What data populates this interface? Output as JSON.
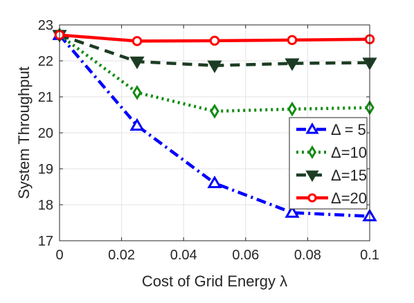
{
  "chart_data": {
    "type": "line",
    "xlabel": "Cost of Grid Energy λ",
    "ylabel": "System Throughput",
    "xlim": [
      0,
      0.1
    ],
    "ylim": [
      17,
      23
    ],
    "x_ticks": [
      0,
      0.02,
      0.04,
      0.06,
      0.08,
      0.1
    ],
    "x_tick_labels": [
      "0",
      "0.02",
      "0.04",
      "0.06",
      "0.08",
      "0.1"
    ],
    "y_ticks": [
      17,
      18,
      19,
      20,
      21,
      22,
      23
    ],
    "y_tick_labels": [
      "17",
      "18",
      "19",
      "20",
      "21",
      "22",
      "23"
    ],
    "grid": true,
    "legend_position": "right",
    "x": [
      0,
      0.025,
      0.05,
      0.075,
      0.1
    ],
    "series": [
      {
        "name": "Δ = 5",
        "values": [
          22.72,
          20.2,
          18.6,
          17.78,
          17.68
        ],
        "color": "#0000ff",
        "line_style": "dash-dot",
        "marker": "triangle-up"
      },
      {
        "name": "Δ=10",
        "values": [
          22.72,
          21.12,
          20.6,
          20.66,
          20.7
        ],
        "color": "#138c13",
        "line_style": "dotted",
        "marker": "diamond"
      },
      {
        "name": "Δ=15",
        "values": [
          22.72,
          21.98,
          21.87,
          21.93,
          21.95
        ],
        "color": "#1c3d24",
        "line_style": "dashed",
        "marker": "triangle-down"
      },
      {
        "name": "Δ=20",
        "values": [
          22.72,
          22.55,
          22.56,
          22.58,
          22.6
        ],
        "color": "#ff0000",
        "line_style": "solid",
        "marker": "circle"
      }
    ]
  }
}
